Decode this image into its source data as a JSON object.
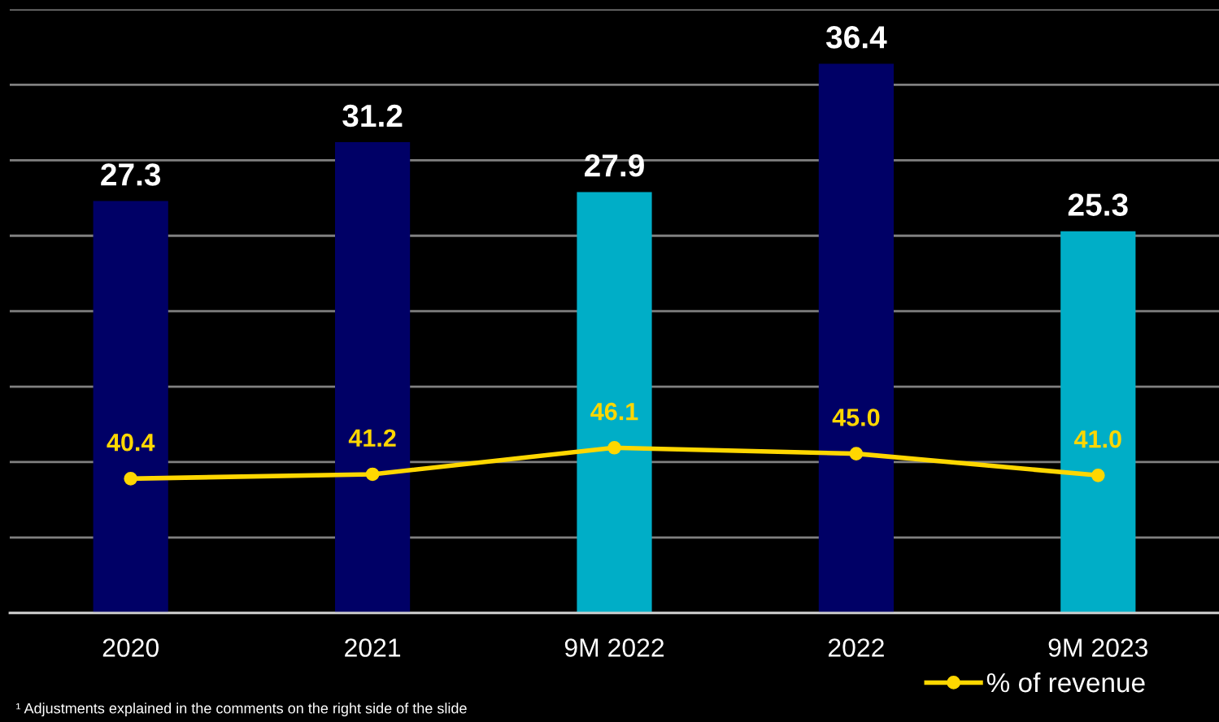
{
  "chart_data": {
    "type": "bar",
    "categories": [
      "2020",
      "2021",
      "9M 2022",
      "2022",
      "9M 2023"
    ],
    "series": [
      {
        "colors": [
          "#000066",
          "#000066",
          "#00aec7",
          "#000066",
          "#00aec7"
        ],
        "values": [
          27.3,
          31.2,
          27.9,
          36.4,
          25.3
        ]
      },
      {
        "type": "line",
        "name": "% of revenue",
        "color": "#ffd700",
        "axis": "y2",
        "marker": "circle",
        "values": [
          40.4,
          41.2,
          46.1,
          45.0,
          41.0
        ],
        "value_labels": [
          "40.4",
          "41.2",
          "46.1",
          "45.0",
          "41.0"
        ]
      }
    ],
    "ylim": [
      0,
      40
    ],
    "yticks": [
      {
        "value": 0,
        "label": null
      },
      {
        "value": 5,
        "label": null
      },
      {
        "value": 10,
        "label": null
      },
      {
        "value": 15,
        "label": null
      },
      {
        "value": 20,
        "label": null
      },
      {
        "value": 25,
        "label": null
      },
      {
        "value": 30,
        "label": null
      },
      {
        "value": 35,
        "label": null
      },
      {
        "value": 40,
        "label": null
      }
    ],
    "y2lim": [
      15.6,
      127
    ],
    "tick_labels": "x",
    "grid": "y",
    "data_labels": true,
    "legend": "bottom right",
    "annotations": [
      "¹ Adjustments explained in the comments on the right side of the slide"
    ]
  }
}
